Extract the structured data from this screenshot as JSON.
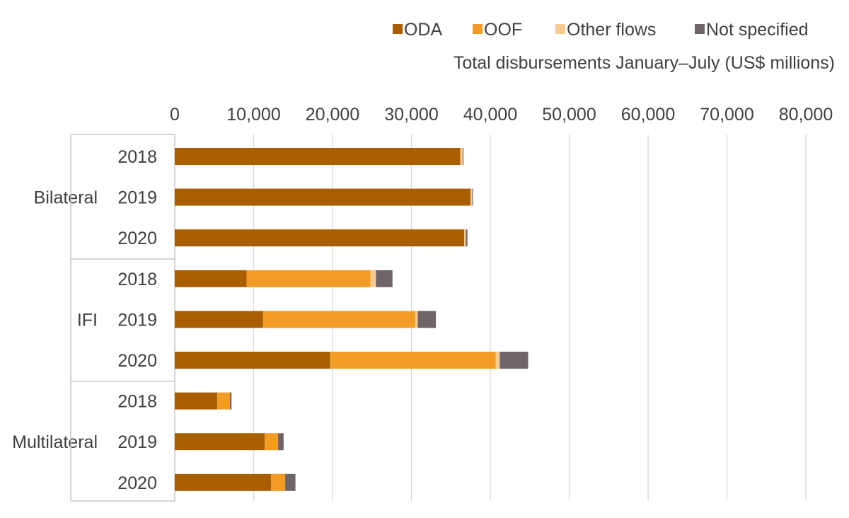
{
  "chart_data": {
    "type": "bar",
    "orientation": "horizontal",
    "stacked": true,
    "axis_title": "Total disbursements January–July (US$ millions)",
    "xlim": [
      0,
      80000
    ],
    "x_ticks": [
      "0",
      "10,000",
      "20,000",
      "30,000",
      "40,000",
      "50,000",
      "60,000",
      "70,000",
      "80,000"
    ],
    "x_tick_values": [
      0,
      10000,
      20000,
      30000,
      40000,
      50000,
      60000,
      70000,
      80000
    ],
    "grid": true,
    "legend_position": "top-right",
    "groups": [
      {
        "name": "Bilateral",
        "categories": [
          "2018",
          "2019",
          "2020"
        ]
      },
      {
        "name": "IFI",
        "categories": [
          "2018",
          "2019",
          "2020"
        ]
      },
      {
        "name": "Multilateral",
        "categories": [
          "2018",
          "2019",
          "2020"
        ]
      }
    ],
    "series": [
      {
        "name": "ODA",
        "color": "#A95F00",
        "values": [
          36200,
          37500,
          36700,
          9100,
          11200,
          19700,
          5400,
          11400,
          12200
        ]
      },
      {
        "name": "OOF",
        "color": "#F29C26",
        "values": [
          0,
          0,
          0,
          15700,
          19300,
          21000,
          1600,
          1700,
          1800
        ]
      },
      {
        "name": "Other flows",
        "color": "#F8CB92",
        "values": [
          300,
          200,
          200,
          700,
          300,
          500,
          0,
          0,
          0
        ]
      },
      {
        "name": "Not specified",
        "color": "#6D6568",
        "values": [
          100,
          100,
          200,
          2100,
          2300,
          3600,
          200,
          700,
          1300
        ]
      }
    ]
  }
}
